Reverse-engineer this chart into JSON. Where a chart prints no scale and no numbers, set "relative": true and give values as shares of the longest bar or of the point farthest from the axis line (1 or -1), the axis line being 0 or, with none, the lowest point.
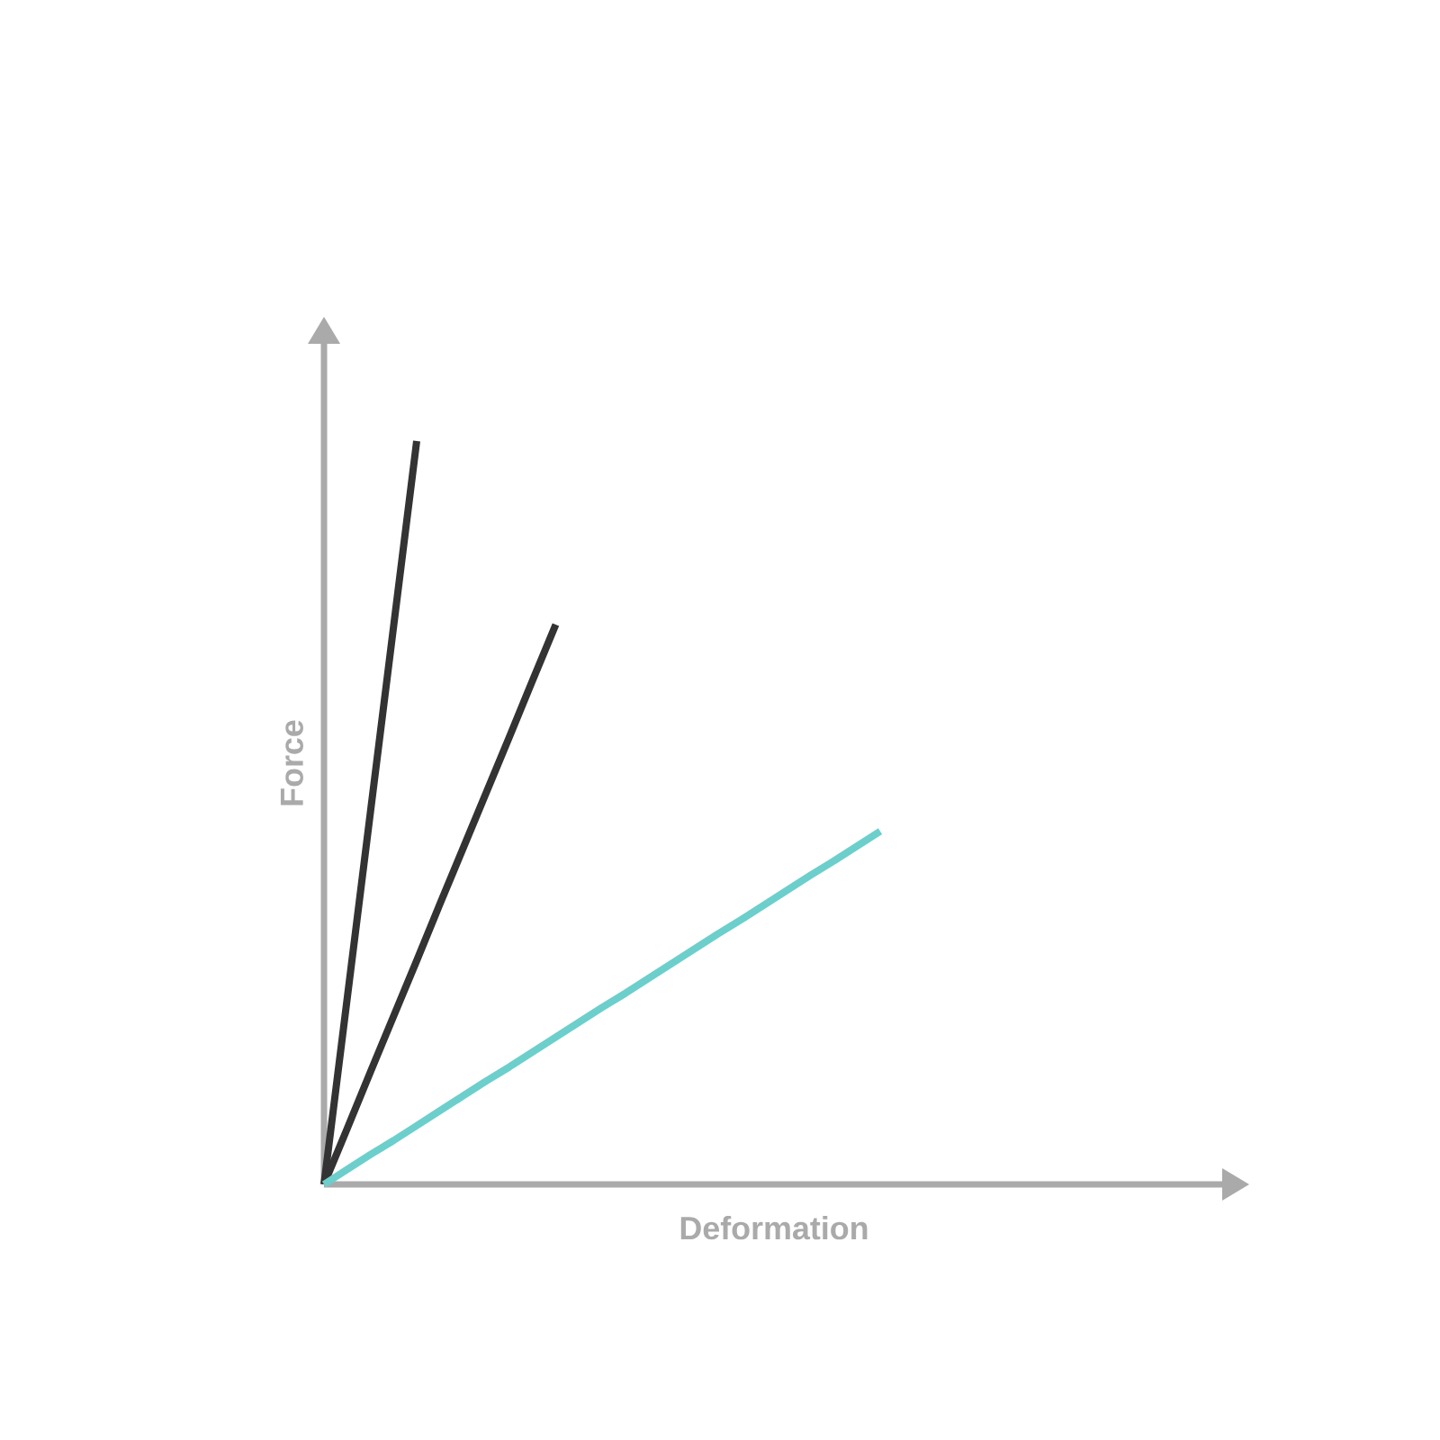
{
  "chart_data": {
    "type": "line",
    "relative": true,
    "xlabel": "Deformation",
    "ylabel": "Force",
    "categories": [
      null,
      null,
      null,
      null,
      null,
      null,
      null,
      null,
      null,
      null,
      null,
      null,
      null,
      null,
      null,
      null,
      null,
      null,
      null,
      null,
      null,
      null,
      null,
      null,
      null
    ],
    "series": [
      {
        "color": "#333333",
        "values": [
          0,
          0.25,
          0.5,
          0.75,
          1,
          null,
          null,
          null,
          null,
          null,
          null,
          null,
          null,
          null,
          null,
          null,
          null,
          null,
          null,
          null,
          null,
          null,
          null,
          null,
          null
        ]
      },
      {
        "color": "#333333",
        "values": [
          0,
          0.075,
          0.151,
          0.226,
          0.301,
          0.377,
          0.452,
          0.527,
          0.602,
          0.678,
          0.753,
          null,
          null,
          null,
          null,
          null,
          null,
          null,
          null,
          null,
          null,
          null,
          null,
          null,
          null
        ]
      },
      {
        "color": "#6ccfcc",
        "values": [
          0,
          0.02,
          0.04,
          0.059,
          0.079,
          0.099,
          0.119,
          0.139,
          0.158,
          0.178,
          0.198,
          0.218,
          0.238,
          0.257,
          0.277,
          0.297,
          0.317,
          0.337,
          0.356,
          0.376,
          0.396,
          0.416,
          0.435,
          0.455,
          0.475
        ]
      }
    ]
  }
}
